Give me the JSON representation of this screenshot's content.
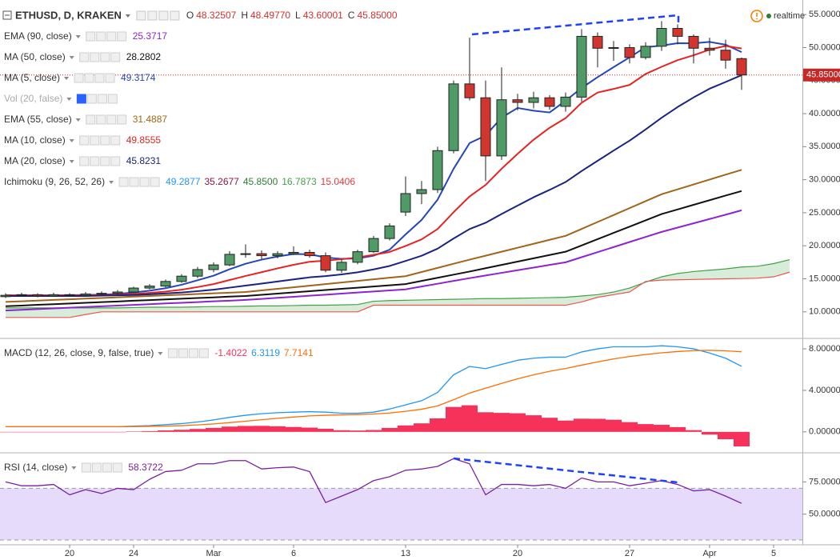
{
  "header": {
    "symbol": "ETHUSD, D, KRAKEN",
    "ohlc": [
      {
        "key": "O",
        "value": "48.32507"
      },
      {
        "key": "H",
        "value": "48.49770"
      },
      {
        "key": "L",
        "value": "43.60001"
      },
      {
        "key": "C",
        "value": "45.85000"
      }
    ],
    "status": "realtime"
  },
  "chart_data": [
    {
      "type": "candlestick",
      "categories": [
        null,
        null,
        null,
        null,
        "20",
        null,
        null,
        null,
        "24",
        null,
        null,
        null,
        null,
        "Mar",
        null,
        null,
        null,
        null,
        "6",
        null,
        null,
        null,
        null,
        null,
        null,
        "13",
        null,
        null,
        null,
        null,
        null,
        null,
        "20",
        null,
        null,
        null,
        null,
        null,
        null,
        "27",
        null,
        null,
        null,
        null,
        "Apr",
        null,
        null,
        null,
        "5",
        null
      ],
      "open": [
        12.3,
        12.5,
        12.6,
        12.4,
        12.6,
        12.5,
        12.7,
        12.8,
        13.0,
        13.6,
        13.9,
        14.6,
        15.4,
        16.4,
        17.1,
        18.7,
        18.8,
        18.5,
        18.8,
        19.0,
        18.5,
        16.3,
        17.5,
        19.1,
        21.1,
        25.1,
        27.9,
        28.5,
        34.4,
        44.5,
        42.4,
        33.6,
        42.1,
        41.7,
        42.4,
        41.1,
        42.5,
        51.7,
        49.9,
        50.0,
        48.5,
        50.2,
        52.9,
        51.7,
        49.9,
        49.6,
        48.32507,
        null,
        null,
        null
      ],
      "high": [
        12.8,
        12.9,
        12.8,
        12.9,
        12.8,
        13.0,
        13.1,
        13.3,
        13.8,
        14.2,
        14.9,
        15.7,
        16.8,
        17.5,
        19.2,
        20.2,
        19.3,
        19.2,
        19.9,
        19.4,
        19.0,
        17.9,
        19.4,
        21.5,
        23.4,
        30.5,
        29.8,
        35.0,
        45.0,
        51.5,
        45.0,
        47.0,
        43.0,
        43.3,
        42.8,
        43.2,
        52.8,
        52.3,
        51.0,
        50.5,
        50.8,
        54.0,
        53.5,
        52.0,
        51.5,
        51.2,
        48.4977,
        null,
        null,
        null
      ],
      "low": [
        12.1,
        12.3,
        12.2,
        12.3,
        12.3,
        12.4,
        12.5,
        12.6,
        12.9,
        13.4,
        13.7,
        14.4,
        15.1,
        16.0,
        16.9,
        18.2,
        18.0,
        18.1,
        18.6,
        18.2,
        16.0,
        15.9,
        17.2,
        18.9,
        20.8,
        24.5,
        26.3,
        28.0,
        34.0,
        42.0,
        29.8,
        33.0,
        40.5,
        40.8,
        40.6,
        40.3,
        41.8,
        47.0,
        48.0,
        47.6,
        48.2,
        49.5,
        50.5,
        47.6,
        48.8,
        46.8,
        43.60001,
        null,
        null,
        null
      ],
      "close": [
        12.5,
        12.6,
        12.4,
        12.6,
        12.5,
        12.7,
        12.8,
        13.0,
        13.6,
        13.9,
        14.6,
        15.4,
        16.4,
        17.1,
        18.7,
        18.8,
        18.5,
        18.8,
        19.0,
        18.5,
        16.3,
        17.5,
        19.1,
        21.1,
        23.0,
        27.9,
        28.5,
        34.4,
        44.5,
        42.4,
        33.6,
        42.1,
        41.7,
        42.4,
        41.1,
        42.5,
        51.7,
        49.9,
        50.0,
        48.5,
        50.2,
        52.9,
        51.7,
        49.9,
        49.6,
        48.1,
        45.85,
        null,
        null,
        null
      ],
      "up_color": "#4f9a66",
      "down_color": "#d2352d",
      "border_color": "#222222",
      "ylim": [
        6.1,
        57.2
      ],
      "yticks": [
        {
          "value": 10,
          "label": "10.00000"
        },
        {
          "value": 15,
          "label": "15.00000"
        },
        {
          "value": 20,
          "label": "20.00000"
        },
        {
          "value": 25,
          "label": "25.00000"
        },
        {
          "value": 30,
          "label": "30.00000"
        },
        {
          "value": 35,
          "label": "35.00000"
        },
        {
          "value": 40,
          "label": "40.00000"
        },
        {
          "value": 45,
          "label": "45.00000"
        },
        {
          "value": 50,
          "label": "50.00000"
        },
        {
          "value": 55,
          "label": "55.00000"
        }
      ],
      "last_price": {
        "value": 45.85,
        "label": "45.85000",
        "color": "#c62828"
      },
      "series": [
        {
          "name": "EMA (90, close)",
          "color": "#8e24d0",
          "label": "25.3717",
          "values": [
            10.2,
            10.31,
            10.41,
            10.52,
            10.63,
            10.73,
            10.84,
            10.95,
            11.05,
            11.16,
            11.27,
            11.37,
            11.48,
            11.59,
            11.69,
            11.8,
            11.96,
            12.12,
            12.28,
            12.44,
            12.6,
            12.76,
            12.92,
            13.08,
            13.24,
            13.4,
            13.83,
            14.25,
            14.68,
            15.1,
            15.5,
            15.9,
            16.3,
            16.7,
            17.1,
            17.5,
            18.27,
            19.03,
            19.8,
            20.57,
            21.33,
            22.1,
            22.75,
            23.4,
            24.05,
            24.7,
            25.3717,
            null,
            null,
            null
          ]
        },
        {
          "name": "MA (50, close)",
          "color": "#111111",
          "label": "28.2802",
          "values": [
            10.85,
            10.95,
            11.06,
            11.16,
            11.26,
            11.37,
            11.47,
            11.57,
            11.68,
            11.78,
            11.88,
            11.99,
            12.09,
            12.19,
            12.3,
            12.4,
            12.58,
            12.76,
            12.94,
            13.12,
            13.3,
            13.48,
            13.66,
            13.84,
            14.02,
            14.2,
            14.68,
            15.15,
            15.63,
            16.1,
            16.6,
            17.1,
            17.6,
            18.1,
            18.6,
            19.1,
            20.05,
            21.0,
            21.95,
            22.9,
            23.85,
            24.8,
            25.5,
            26.2,
            26.9,
            27.6,
            28.2802,
            null,
            null,
            null
          ]
        },
        {
          "name": "MA (5, close)",
          "color": "#2346b8",
          "label": "49.3174",
          "values": [
            12.5,
            12.5,
            12.5,
            12.5,
            12.52,
            12.56,
            12.6,
            12.72,
            12.92,
            13.2,
            13.58,
            14.1,
            14.78,
            15.48,
            16.44,
            17.28,
            17.9,
            18.38,
            18.76,
            18.72,
            18.22,
            18.02,
            18.08,
            18.5,
            19.4,
            21.72,
            23.92,
            26.98,
            31.66,
            35.54,
            36.68,
            39.4,
            40.86,
            40.44,
            40.18,
            41.96,
            43.88,
            45.52,
            47.04,
            48.52,
            50.06,
            50.3,
            50.66,
            50.64,
            50.86,
            50.44,
            49.3174,
            null,
            null,
            null
          ]
        },
        {
          "name": "Vol (20, false)",
          "hidden": true
        },
        {
          "name": "EMA (55, close)",
          "color": "#a0651a",
          "label": "31.4887",
          "values": [
            11.5,
            11.6,
            11.7,
            11.8,
            11.9,
            12.0,
            12.1,
            12.2,
            12.3,
            12.4,
            12.5,
            12.6,
            12.7,
            12.8,
            12.9,
            13.0,
            13.24,
            13.48,
            13.72,
            13.96,
            14.2,
            14.44,
            14.68,
            14.92,
            15.16,
            15.4,
            16.03,
            16.65,
            17.28,
            17.9,
            18.5,
            19.1,
            19.7,
            20.3,
            20.9,
            21.5,
            22.55,
            23.6,
            24.65,
            25.7,
            26.75,
            27.8,
            28.54,
            29.28,
            30.02,
            30.76,
            31.4887,
            null,
            null,
            null
          ]
        },
        {
          "name": "MA (10, close)",
          "color": "#e52421",
          "label": "49.8555",
          "values": [
            12.5,
            12.5,
            12.5,
            12.5,
            12.5,
            12.5,
            12.55,
            12.6,
            12.7,
            12.86,
            13.07,
            13.35,
            13.75,
            14.2,
            14.82,
            15.43,
            16.0,
            16.58,
            17.12,
            17.58,
            17.75,
            17.96,
            18.23,
            18.63,
            19.06,
            19.97,
            20.97,
            22.53,
            25.08,
            27.47,
            29.2,
            31.66,
            33.92,
            36.05,
            37.86,
            39.32,
            41.64,
            43.19,
            43.74,
            44.35,
            46.01,
            47.09,
            48.09,
            48.84,
            49.69,
            50.25,
            49.8555,
            null,
            null,
            null
          ]
        },
        {
          "name": "MA (20, close)",
          "color": "#1a237e",
          "label": "45.8231",
          "values": [
            12.4,
            12.4,
            12.4,
            12.4,
            12.4,
            12.4,
            12.45,
            12.5,
            12.55,
            12.65,
            12.79,
            12.93,
            13.13,
            13.35,
            13.66,
            13.97,
            14.28,
            14.59,
            14.91,
            15.22,
            15.41,
            15.66,
            15.99,
            16.42,
            16.94,
            17.7,
            18.49,
            19.56,
            21.1,
            22.53,
            23.48,
            24.81,
            26.08,
            27.34,
            28.46,
            29.65,
            31.31,
            32.86,
            34.41,
            35.91,
            37.61,
            39.38,
            41.0,
            42.45,
            43.78,
            44.79,
            45.8231,
            null,
            null,
            null
          ]
        },
        {
          "name": "Ichimoku (9, 26, 52, 26)",
          "labels": [
            "49.2877",
            "35.2677",
            "45.8500",
            "16.7873",
            "15.0406"
          ],
          "label_colors": [
            "#2196f3",
            "#8e1538",
            "#2e7d32",
            "#43a047",
            "#e53935"
          ],
          "lead_a_color": "#43a047",
          "lead_b_color": "#ef5350",
          "cloud_color": "#c8e6c9",
          "lead_a": [
            10.6,
            10.6,
            10.6,
            10.6,
            10.6,
            10.6,
            10.6,
            10.6,
            10.65,
            10.7,
            10.7,
            10.7,
            10.75,
            10.8,
            10.8,
            10.85,
            10.9,
            10.9,
            10.95,
            11.0,
            11.0,
            11.05,
            11.1,
            11.6,
            11.7,
            11.75,
            11.8,
            11.85,
            11.9,
            11.95,
            12.0,
            12.0,
            12.05,
            12.1,
            12.15,
            12.2,
            12.4,
            12.6,
            13.0,
            13.6,
            14.5,
            15.3,
            15.8,
            16.1,
            16.3,
            16.5,
            16.7873,
            16.9,
            17.3,
            17.9
          ],
          "lead_b": [
            9.15,
            9.15,
            9.15,
            9.15,
            9.15,
            9.6,
            10.0,
            10.0,
            10.0,
            10.0,
            10.0,
            10.0,
            10.0,
            10.0,
            10.0,
            10.0,
            10.0,
            10.0,
            10.0,
            10.0,
            10.0,
            10.0,
            10.0,
            11.0,
            11.0,
            11.0,
            11.0,
            11.0,
            11.0,
            11.0,
            11.0,
            11.0,
            11.0,
            11.0,
            11.0,
            11.0,
            11.5,
            12.2,
            12.6,
            13.0,
            14.6,
            14.8,
            14.85,
            14.9,
            14.95,
            15.0,
            15.0406,
            15.1,
            15.3,
            16.0
          ]
        }
      ]
    },
    {
      "type": "macd",
      "name": "MACD (12, 26, close, 9, false, true)",
      "ylim": [
        -1.94,
        8.93
      ],
      "yticks": [
        {
          "value": 0,
          "label": "0.00000"
        },
        {
          "value": 4,
          "label": "4.00000"
        },
        {
          "value": 8,
          "label": "8.00000"
        }
      ],
      "series": [
        {
          "style": "histogram",
          "color": "#f7325a",
          "label": "-1.4022",
          "values": [
            0,
            0,
            0,
            0,
            0,
            0,
            0,
            0,
            0.04,
            0.07,
            0.14,
            0.2,
            0.28,
            0.38,
            0.51,
            0.57,
            0.58,
            0.54,
            0.47,
            0.41,
            0.3,
            0.16,
            0.13,
            0.18,
            0.38,
            0.62,
            0.82,
            1.3,
            2.4,
            2.56,
            1.89,
            1.83,
            1.79,
            1.6,
            1.36,
            1.09,
            1.27,
            1.26,
            1.17,
            0.94,
            0.75,
            0.68,
            0.46,
            0.17,
            -0.26,
            -0.71,
            -1.4022,
            null,
            null,
            null
          ]
        },
        {
          "style": "line",
          "color": "#2196f3",
          "label": "6.3119",
          "values": [
            0.5,
            0.5,
            0.5,
            0.5,
            0.5,
            0.5,
            0.5,
            0.5,
            0.55,
            0.6,
            0.7,
            0.8,
            0.95,
            1.15,
            1.4,
            1.6,
            1.75,
            1.85,
            1.9,
            1.95,
            1.9,
            1.8,
            1.8,
            1.9,
            2.2,
            2.6,
            3.0,
            3.8,
            5.5,
            6.3,
            6.1,
            6.5,
            6.9,
            7.1,
            7.2,
            7.2,
            7.7,
            8.0,
            8.2,
            8.2,
            8.2,
            8.3,
            8.2,
            8.0,
            7.6,
            7.1,
            6.3119,
            null,
            null,
            null
          ]
        },
        {
          "style": "line",
          "color": "#ff6d00",
          "label": "7.7141",
          "values": [
            0.5,
            0.5,
            0.5,
            0.5,
            0.5,
            0.5,
            0.5,
            0.5,
            0.51,
            0.53,
            0.56,
            0.6,
            0.67,
            0.77,
            0.89,
            1.03,
            1.17,
            1.31,
            1.43,
            1.54,
            1.6,
            1.64,
            1.67,
            1.72,
            1.82,
            1.98,
            2.18,
            2.5,
            3.1,
            3.74,
            4.21,
            4.67,
            5.11,
            5.5,
            5.84,
            6.11,
            6.43,
            6.74,
            7.03,
            7.26,
            7.45,
            7.62,
            7.74,
            7.83,
            7.86,
            7.81,
            7.7141,
            null,
            null,
            null
          ]
        }
      ]
    },
    {
      "type": "rsi",
      "name": "RSI (14, close)",
      "ylim": [
        26.9,
        96.9
      ],
      "yticks": [
        {
          "value": 50,
          "label": "50.00000"
        },
        {
          "value": 75,
          "label": "75.00000"
        }
      ],
      "band": [
        30,
        70
      ],
      "band_color": "#e6dbfa",
      "series": [
        {
          "style": "line",
          "color": "#7b1fa2",
          "label": "58.3722",
          "values": [
            75,
            72,
            72,
            73,
            65,
            69,
            66,
            70,
            69,
            77,
            83,
            84,
            89,
            89,
            91.5,
            91.5,
            85,
            86,
            86.5,
            83,
            59,
            64,
            69,
            76,
            79,
            84,
            85,
            87,
            93,
            89,
            65,
            73,
            73,
            72,
            73,
            70,
            78,
            75,
            75,
            72,
            74,
            76,
            73,
            68,
            69,
            64,
            58.3722,
            null,
            null,
            null
          ]
        }
      ]
    }
  ]
}
